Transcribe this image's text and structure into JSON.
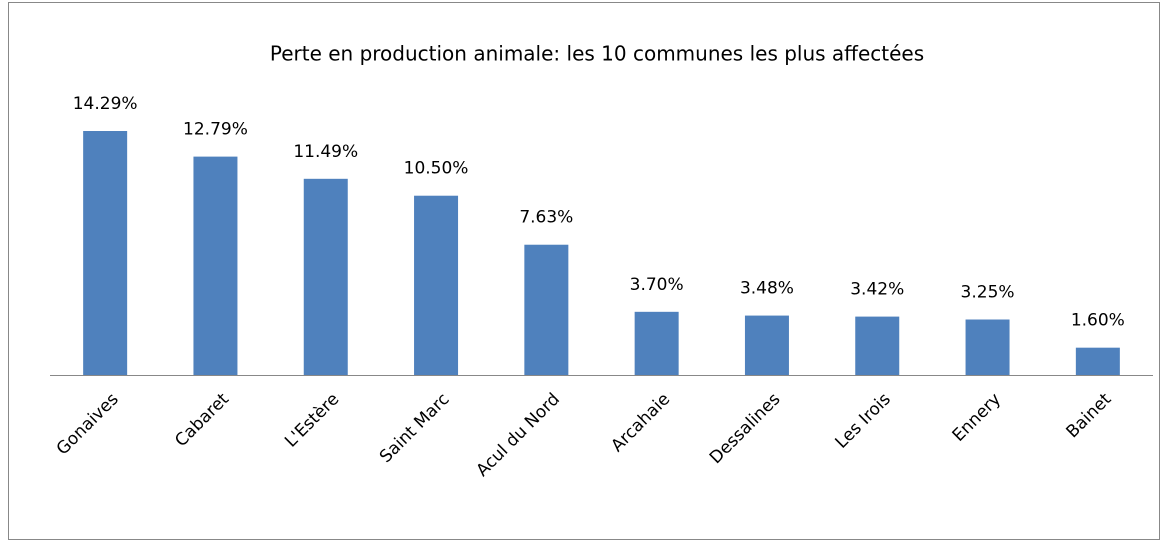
{
  "chart_data": {
    "type": "bar",
    "title": "Perte en production animale: les 10 communes les plus affectées",
    "categories": [
      "Gonaives",
      "Cabaret",
      "L'Estère",
      "Saint Marc",
      "Acul du Nord",
      "Arcahaie",
      "Dessalines",
      "Les Irois",
      "Ennery",
      "Bainet"
    ],
    "values": [
      14.29,
      12.79,
      11.49,
      10.5,
      7.63,
      3.7,
      3.48,
      3.42,
      3.25,
      1.6
    ],
    "value_labels": [
      "14.29%",
      "12.79%",
      "11.49%",
      "10.50%",
      "7.63%",
      "3.70%",
      "3.48%",
      "3.42%",
      "3.25%",
      "1.60%"
    ],
    "color": "#4f81bd"
  }
}
